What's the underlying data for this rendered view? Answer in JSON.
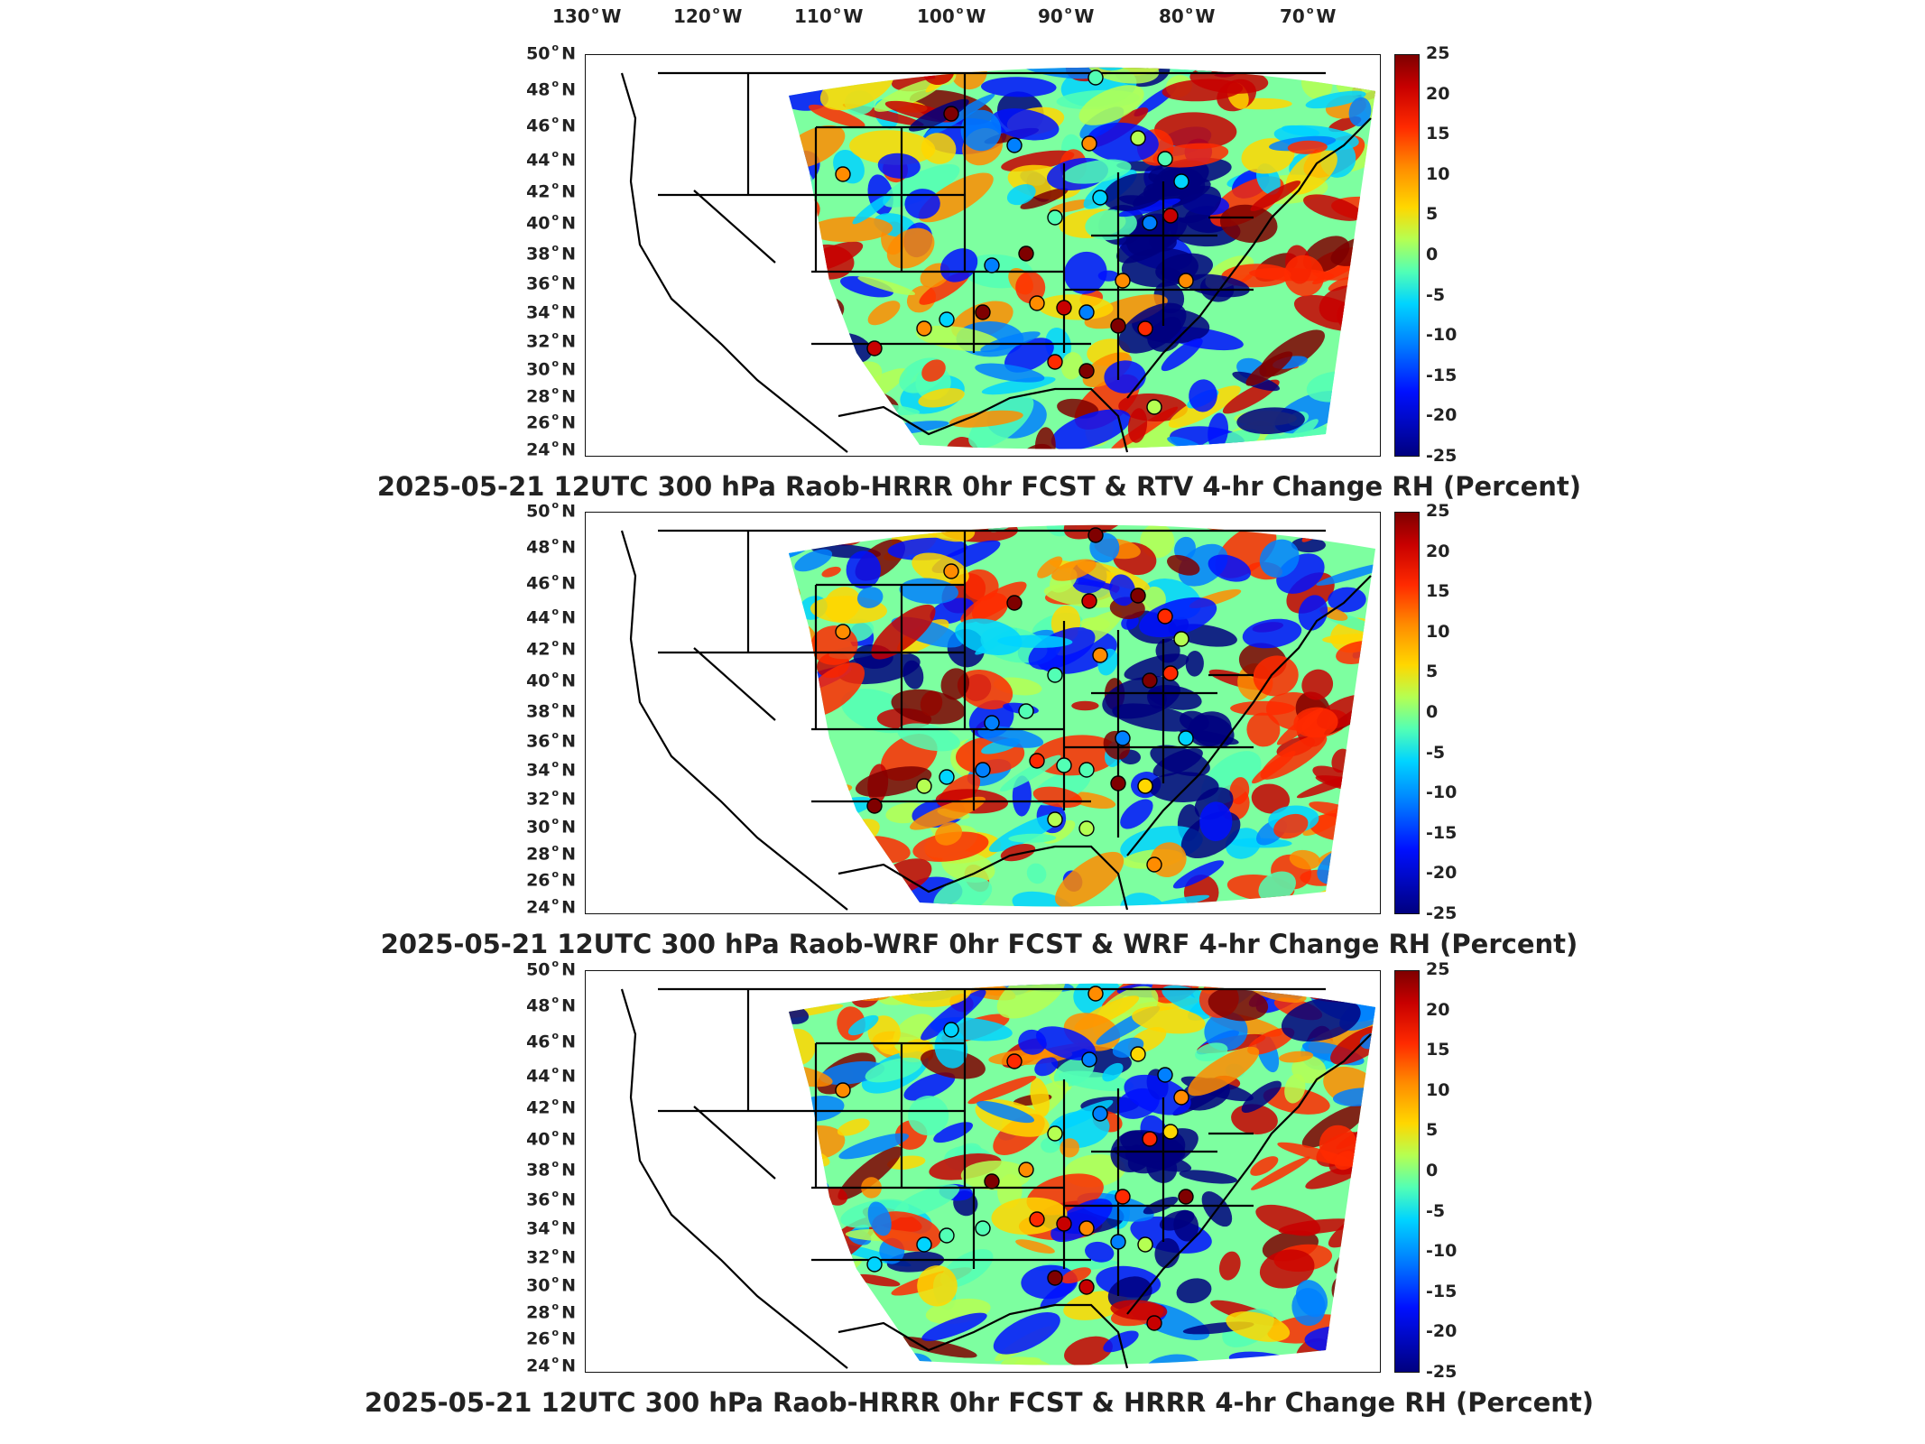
{
  "lon_labels": [
    "130",
    "120",
    "110",
    "100",
    "90",
    "80",
    "70"
  ],
  "lon_suffix": "W",
  "lat_labels": [
    "50",
    "48",
    "46",
    "44",
    "42",
    "40",
    "38",
    "36",
    "34",
    "32",
    "30",
    "28",
    "26",
    "24"
  ],
  "lat_suffix": "N",
  "colorbar_ticks": [
    "25",
    "20",
    "15",
    "10",
    "5",
    "0",
    "-5",
    "-10",
    "-15",
    "-20",
    "-25"
  ],
  "colorbar_range": [
    -25,
    25
  ],
  "colorscale": [
    "#00007f",
    "#0010ff",
    "#0080ff",
    "#00d4ff",
    "#52ffb5",
    "#b5ff52",
    "#ffd700",
    "#ff8c00",
    "#ff2a00",
    "#c80000",
    "#7f0000"
  ],
  "panels": [
    {
      "title": "2025-05-21 12UTC 300 hPa Raob-HRRR 0hr FCST & RTV 4-hr Change RH (Percent)"
    },
    {
      "title": "2025-05-21 12UTC 300 hPa Raob-WRF 0hr FCST & WRF 4-hr Change RH (Percent)"
    },
    {
      "title": "2025-05-21 12UTC 300 hPa Raob-HRRR 0hr FCST & HRRR 4-hr Change RH (Percent)"
    }
  ]
}
